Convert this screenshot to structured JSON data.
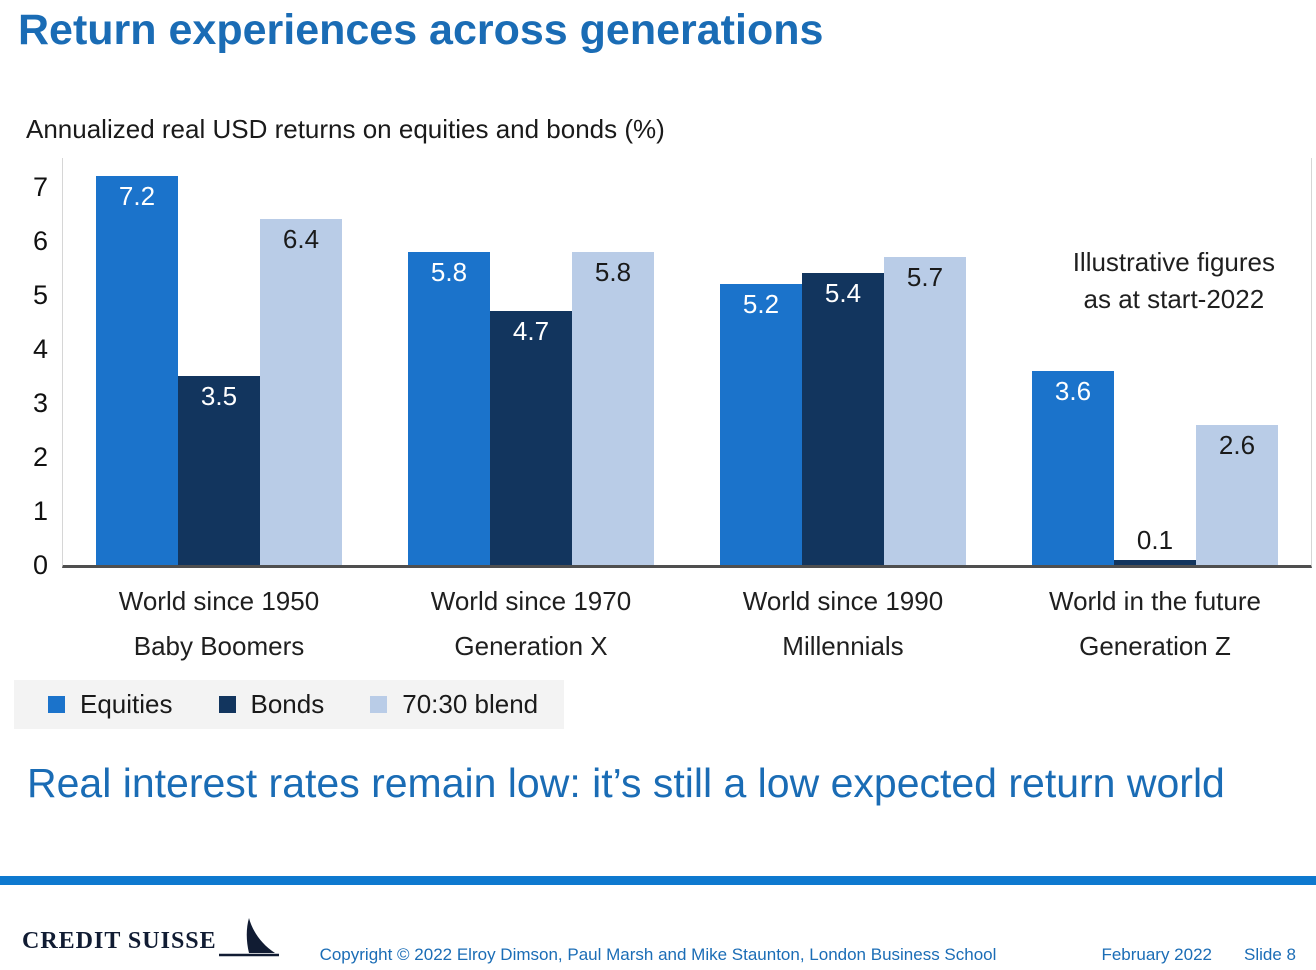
{
  "slide": {
    "title": "Return experiences across generations",
    "takeaway": "Real interest rates remain low: it’s still a low expected return world",
    "footer": {
      "logo_text": "CREDIT SUISSE",
      "copyright": "Copyright © 2022 Elroy Dimson, Paul Marsh and Mike Staunton, London Business School",
      "date": "February 2022",
      "slide_label": "Slide 8"
    },
    "colors": {
      "title_blue": "#1a6cb5",
      "divider_blue": "#0e79cf",
      "footer_text_blue": "#1b6db6",
      "logo_navy": "#111c33"
    }
  },
  "chart_data": {
    "type": "bar",
    "title": "Annualized real USD returns on equities and bonds (%)",
    "categories": [
      {
        "period": "World since 1950",
        "generation": "Baby Boomers"
      },
      {
        "period": "World since 1970",
        "generation": "Generation X"
      },
      {
        "period": "World since 1990",
        "generation": "Millennials"
      },
      {
        "period": "World in the future",
        "generation": "Generation Z"
      }
    ],
    "series": [
      {
        "name": "Equities",
        "color": "#1b73cb",
        "label_color": "#ffffff",
        "values": [
          7.2,
          5.8,
          5.2,
          3.6
        ]
      },
      {
        "name": "Bonds",
        "color": "#12355e",
        "label_color": "#ffffff",
        "values": [
          3.5,
          4.7,
          5.4,
          0.1
        ]
      },
      {
        "name": "70:30 blend",
        "color": "#b9cce7",
        "label_color": "#1a1a1a",
        "values": [
          6.4,
          5.8,
          5.7,
          2.6
        ]
      }
    ],
    "ylim": [
      0,
      7
    ],
    "yticks": [
      0,
      1,
      2,
      3,
      4,
      5,
      6,
      7
    ],
    "annotation_lines": [
      "Illustrative figures",
      "as at start-2022"
    ],
    "legend_position": "bottom-left",
    "grid": false
  }
}
